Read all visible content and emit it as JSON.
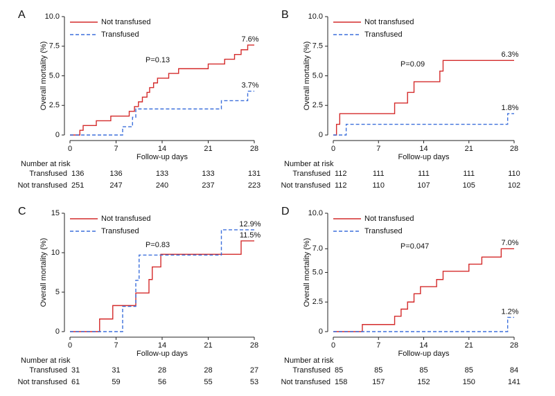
{
  "chart_data": [
    {
      "type": "line",
      "panel": "A",
      "ylabel": "Overall mortality (%)",
      "xlabel": "Follow-up days",
      "annotation": "P=0.13",
      "xlim": [
        0,
        28
      ],
      "xticks": [
        0,
        7,
        14,
        21,
        28
      ],
      "ylim": [
        0,
        10
      ],
      "yticks": [
        0,
        2.5,
        {
          "value": 5,
          "label": "5.0"
        },
        7.5,
        {
          "value": 10,
          "label": "10.0"
        }
      ],
      "series": [
        {
          "name": "Not transfused",
          "color": "#d42a2a",
          "dashed": false,
          "x": [
            0,
            1.5,
            2,
            4,
            6.2,
            9,
            9.8,
            10.4,
            11,
            11.7,
            12.1,
            12.7,
            13.3,
            15,
            16.5,
            21,
            23.5,
            25,
            26,
            27,
            28
          ],
          "values": [
            0,
            0.4,
            0.8,
            1.2,
            1.6,
            2.0,
            2.4,
            2.8,
            3.2,
            3.6,
            4.0,
            4.4,
            4.8,
            5.2,
            5.6,
            6.0,
            6.4,
            6.8,
            7.2,
            7.6,
            7.6
          ],
          "value_labels": [
            null,
            null,
            null,
            null,
            null,
            null,
            null,
            null,
            null,
            null,
            null,
            null,
            null,
            null,
            null,
            null,
            null,
            null,
            null,
            null,
            "7.6%"
          ]
        },
        {
          "name": "Transfused",
          "color": "#3b6fdc",
          "dashed": true,
          "x": [
            0,
            8,
            9.5,
            10,
            23,
            27,
            28
          ],
          "values": [
            0,
            0.7,
            1.5,
            2.2,
            2.9,
            3.7,
            3.7
          ],
          "value_labels": [
            null,
            null,
            null,
            null,
            null,
            null,
            "3.7%"
          ]
        }
      ],
      "risk_table": {
        "title": "Number at risk",
        "rows": [
          {
            "name": "Transfused",
            "values": [
              136,
              136,
              133,
              133,
              131
            ]
          },
          {
            "name": "Not transfused",
            "values": [
              251,
              247,
              240,
              237,
              223
            ]
          }
        ]
      }
    },
    {
      "type": "line",
      "panel": "B",
      "ylabel": "Overall mortality (%)",
      "xlabel": "Follow-up days",
      "annotation": "P=0.09",
      "xlim": [
        0,
        28
      ],
      "xticks": [
        0,
        7,
        14,
        21,
        28
      ],
      "ylim": [
        0,
        10
      ],
      "yticks": [
        0,
        2.5,
        {
          "value": 5,
          "label": "5.0"
        },
        7.5,
        {
          "value": 10,
          "label": "10.0"
        }
      ],
      "series": [
        {
          "name": "Not transfused",
          "color": "#d42a2a",
          "dashed": false,
          "x": [
            0,
            0.5,
            1,
            9.5,
            11.5,
            12.5,
            16.5,
            17,
            28
          ],
          "values": [
            0,
            0.9,
            1.8,
            2.7,
            3.6,
            4.5,
            5.4,
            6.3,
            6.3
          ],
          "value_labels": [
            null,
            null,
            null,
            null,
            null,
            null,
            null,
            null,
            "6.3%"
          ]
        },
        {
          "name": "Transfused",
          "color": "#3b6fdc",
          "dashed": true,
          "x": [
            0,
            2,
            27,
            28
          ],
          "values": [
            0,
            0.9,
            1.8,
            1.8
          ],
          "value_labels": [
            null,
            null,
            null,
            "1.8%"
          ]
        }
      ],
      "risk_table": {
        "title": "Number at risk",
        "rows": [
          {
            "name": "Transfused",
            "values": [
              112,
              111,
              111,
              111,
              110
            ]
          },
          {
            "name": "Not transfused",
            "values": [
              112,
              110,
              107,
              105,
              102
            ]
          }
        ]
      }
    },
    {
      "type": "line",
      "panel": "C",
      "ylabel": "Overall mortality (%)",
      "xlabel": "Follow-up days",
      "annotation": "P=0.83",
      "xlim": [
        0,
        28
      ],
      "xticks": [
        0,
        7,
        14,
        21,
        28
      ],
      "ylim": [
        0,
        15
      ],
      "yticks": [
        0,
        5,
        10,
        15
      ],
      "series": [
        {
          "name": "Not transfused",
          "color": "#d42a2a",
          "dashed": false,
          "x": [
            0,
            4.5,
            6.5,
            10,
            12,
            12.5,
            13.8,
            26,
            28
          ],
          "values": [
            0,
            1.6,
            3.3,
            4.9,
            6.6,
            8.2,
            9.8,
            11.5,
            11.5
          ],
          "value_labels": [
            null,
            null,
            null,
            null,
            null,
            null,
            null,
            null,
            "11.5%"
          ]
        },
        {
          "name": "Transfused",
          "color": "#3b6fdc",
          "dashed": true,
          "x": [
            0,
            8,
            10,
            10.5,
            23,
            28
          ],
          "values": [
            0,
            3.2,
            6.5,
            9.7,
            12.9,
            12.9
          ],
          "value_labels": [
            null,
            null,
            null,
            null,
            null,
            "12.9%"
          ]
        }
      ],
      "risk_table": {
        "title": "Number at risk",
        "rows": [
          {
            "name": "Transfused",
            "values": [
              31,
              31,
              28,
              28,
              27
            ]
          },
          {
            "name": "Not transfused",
            "values": [
              61,
              59,
              56,
              55,
              53
            ]
          }
        ]
      }
    },
    {
      "type": "line",
      "panel": "D",
      "ylabel": "Overall mortality (%)",
      "xlabel": "Follow-up days",
      "annotation": "P=0.047",
      "xlim": [
        0,
        28
      ],
      "xticks": [
        0,
        7,
        14,
        21,
        28
      ],
      "ylim": [
        0,
        10
      ],
      "yticks": [
        0,
        2.5,
        {
          "value": 5,
          "label": "5.0"
        },
        {
          "value": 7,
          "label": "7.0"
        },
        {
          "value": 10,
          "label": "10.0"
        }
      ],
      "series": [
        {
          "name": "Not transfused",
          "color": "#d42a2a",
          "dashed": false,
          "x": [
            0,
            4.5,
            9.5,
            10.5,
            11.5,
            12.5,
            13.5,
            16,
            17,
            21,
            23,
            26,
            28
          ],
          "values": [
            0,
            0.6,
            1.3,
            1.9,
            2.5,
            3.2,
            3.8,
            4.4,
            5.1,
            5.7,
            6.3,
            7.0,
            7.0
          ],
          "value_labels": [
            null,
            null,
            null,
            null,
            null,
            null,
            null,
            null,
            null,
            null,
            null,
            null,
            "7.0%"
          ]
        },
        {
          "name": "Transfused",
          "color": "#3b6fdc",
          "dashed": true,
          "x": [
            0,
            27,
            28
          ],
          "values": [
            0,
            1.2,
            1.2
          ],
          "value_labels": [
            null,
            null,
            "1.2%"
          ]
        }
      ],
      "risk_table": {
        "title": "Number at risk",
        "rows": [
          {
            "name": "Transfused",
            "values": [
              85,
              85,
              85,
              85,
              84
            ]
          },
          {
            "name": "Not transfused",
            "values": [
              158,
              157,
              152,
              150,
              141
            ]
          }
        ]
      }
    }
  ]
}
